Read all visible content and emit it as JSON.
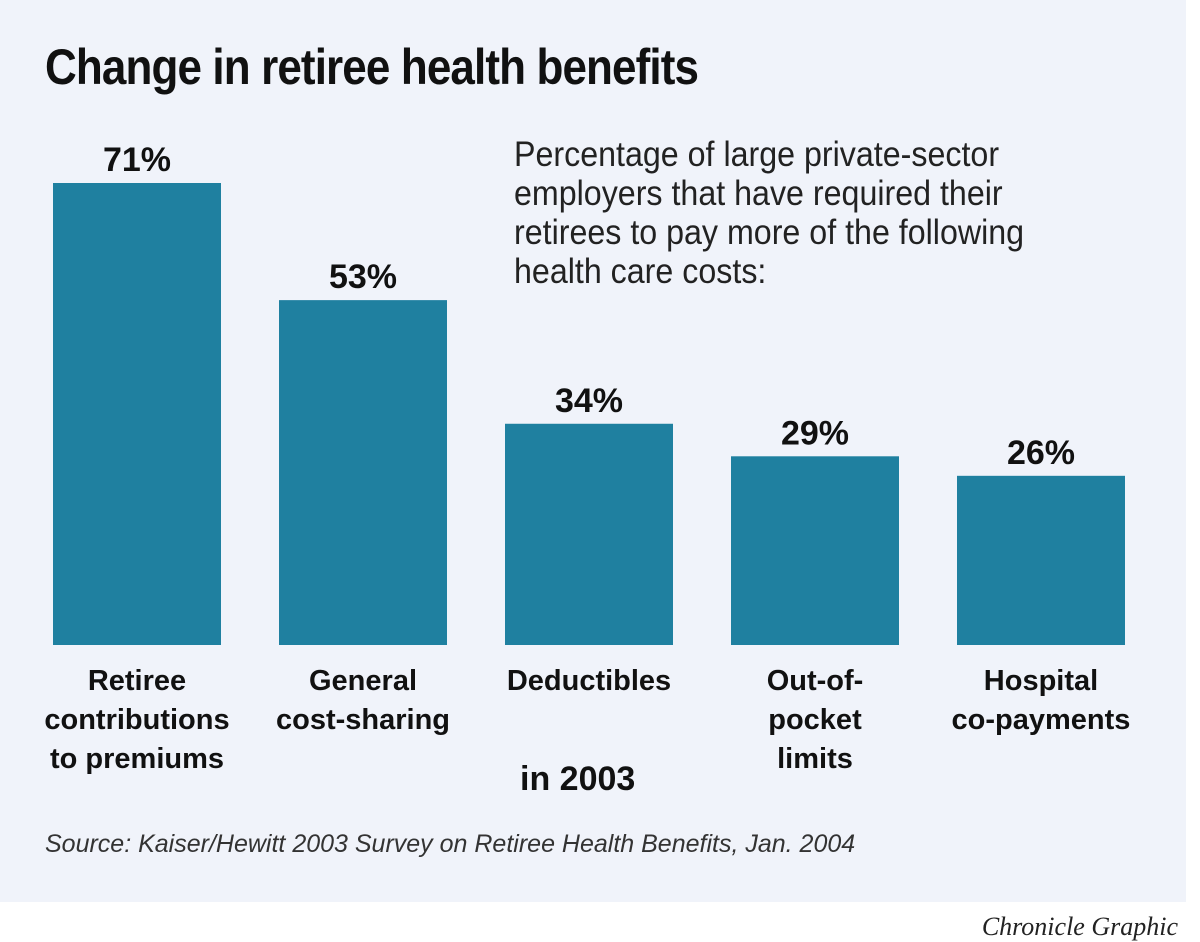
{
  "chart_data": {
    "type": "bar",
    "title": "Change in retiree health benefits",
    "subtitle": "Percentage of large private-sector employers that have required their retirees to pay more of the following health care costs:",
    "categories": [
      "Retiree contributions to premiums",
      "General cost-sharing",
      "Deductibles",
      "Out-of-pocket limits",
      "Hospital co-payments"
    ],
    "category_lines": [
      [
        "Retiree",
        "contributions",
        "to premiums"
      ],
      [
        "General",
        "cost-sharing"
      ],
      [
        "Deductibles"
      ],
      [
        "Out-of-",
        "pocket",
        "limits"
      ],
      [
        "Hospital",
        "co-payments"
      ]
    ],
    "values": [
      71,
      53,
      34,
      29,
      26
    ],
    "value_labels": [
      "71%",
      "53%",
      "34%",
      "29%",
      "26%"
    ],
    "ylim": [
      0,
      71
    ],
    "grid": false,
    "xlabel": "in 2003",
    "bar_color": "#1f80a0",
    "background_color": "#f0f3fa"
  },
  "source": "Source: Kaiser/Hewitt 2003 Survey on Retiree Health Benefits, Jan. 2004",
  "credit": "Chronicle Graphic"
}
